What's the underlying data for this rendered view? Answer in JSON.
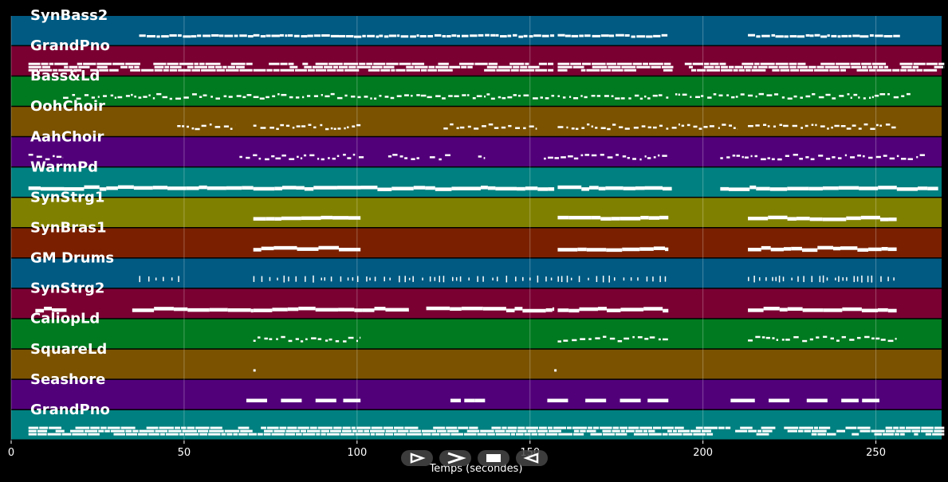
{
  "chart_data": {
    "type": "piano-roll",
    "xlabel": "Temps (secondes)",
    "xlim": [
      0,
      269
    ],
    "xticks": [
      0,
      50,
      100,
      150,
      200,
      250
    ],
    "grid": true,
    "tracks": [
      {
        "name": "SynBass2",
        "color": "#005a82",
        "regions": [
          [
            37,
            70
          ],
          [
            70,
            157
          ],
          [
            158,
            190
          ],
          [
            213,
            257
          ]
        ],
        "style": "dense"
      },
      {
        "name": "GrandPno",
        "color": "#7a0032",
        "regions": [
          [
            5,
            70
          ],
          [
            70,
            157
          ],
          [
            158,
            270
          ]
        ],
        "style": "chord"
      },
      {
        "name": "Bass&Ld",
        "color": "#007a20",
        "regions": [
          [
            15,
            70
          ],
          [
            70,
            157
          ],
          [
            158,
            190
          ],
          [
            192,
            212
          ],
          [
            213,
            260
          ]
        ],
        "style": "dotted"
      },
      {
        "name": "OohChoir",
        "color": "#7a5200",
        "regions": [
          [
            48,
            65
          ],
          [
            70,
            101
          ],
          [
            125,
            152
          ],
          [
            158,
            190
          ],
          [
            191,
            210
          ],
          [
            213,
            256
          ]
        ],
        "style": "dotted"
      },
      {
        "name": "AahChoir",
        "color": "#52007a",
        "regions": [
          [
            5,
            15
          ],
          [
            66,
            102
          ],
          [
            109,
            118
          ],
          [
            121,
            127
          ],
          [
            135,
            137
          ],
          [
            154,
            190
          ],
          [
            205,
            265
          ]
        ],
        "style": "dotted"
      },
      {
        "name": "WarmPd",
        "color": "#008080",
        "regions": [
          [
            5,
            70
          ],
          [
            70,
            157
          ],
          [
            158,
            191
          ],
          [
            205,
            268
          ]
        ],
        "style": "bar"
      },
      {
        "name": "SynStrg1",
        "color": "#808000",
        "regions": [
          [
            70,
            101
          ],
          [
            158,
            190
          ],
          [
            213,
            256
          ]
        ],
        "style": "bar"
      },
      {
        "name": "SynBras1",
        "color": "#7a2000",
        "regions": [
          [
            70,
            101
          ],
          [
            158,
            190
          ],
          [
            213,
            256
          ]
        ],
        "style": "bar"
      },
      {
        "name": "GM Drums",
        "color": "#005a82",
        "regions": [
          [
            37,
            50
          ],
          [
            70,
            157
          ],
          [
            158,
            190
          ],
          [
            213,
            256
          ]
        ],
        "style": "ticks"
      },
      {
        "name": "SynStrg2",
        "color": "#7a0032",
        "regions": [
          [
            7,
            16
          ],
          [
            35,
            70
          ],
          [
            70,
            105
          ],
          [
            105,
            115
          ],
          [
            120,
            157
          ],
          [
            158,
            190
          ],
          [
            213,
            256
          ]
        ],
        "style": "bar"
      },
      {
        "name": "CaliopLd",
        "color": "#007a20",
        "regions": [
          [
            70,
            101
          ],
          [
            158,
            190
          ],
          [
            213,
            256
          ]
        ],
        "style": "dotted"
      },
      {
        "name": "SquareLd",
        "color": "#7a5200",
        "regions": [
          [
            70,
            71
          ],
          [
            157,
            158
          ]
        ],
        "style": "point"
      },
      {
        "name": "Seashore",
        "color": "#52007a",
        "regions": [
          [
            68,
            74
          ],
          [
            78,
            84
          ],
          [
            88,
            94
          ],
          [
            96,
            101
          ],
          [
            127,
            130
          ],
          [
            131,
            134
          ],
          [
            134,
            137
          ],
          [
            155,
            161
          ],
          [
            166,
            172
          ],
          [
            176,
            182
          ],
          [
            184,
            190
          ],
          [
            208,
            215
          ],
          [
            219,
            225
          ],
          [
            230,
            236
          ],
          [
            240,
            245
          ],
          [
            246,
            251
          ]
        ],
        "style": "block"
      },
      {
        "name": "GrandPno",
        "color": "#008080",
        "regions": [
          [
            5,
            270
          ]
        ],
        "style": "chord"
      }
    ]
  },
  "controls": {
    "play_label": "play",
    "fast_forward_label": "fast forward",
    "stop_label": "stop",
    "rewind_label": "rewind"
  }
}
